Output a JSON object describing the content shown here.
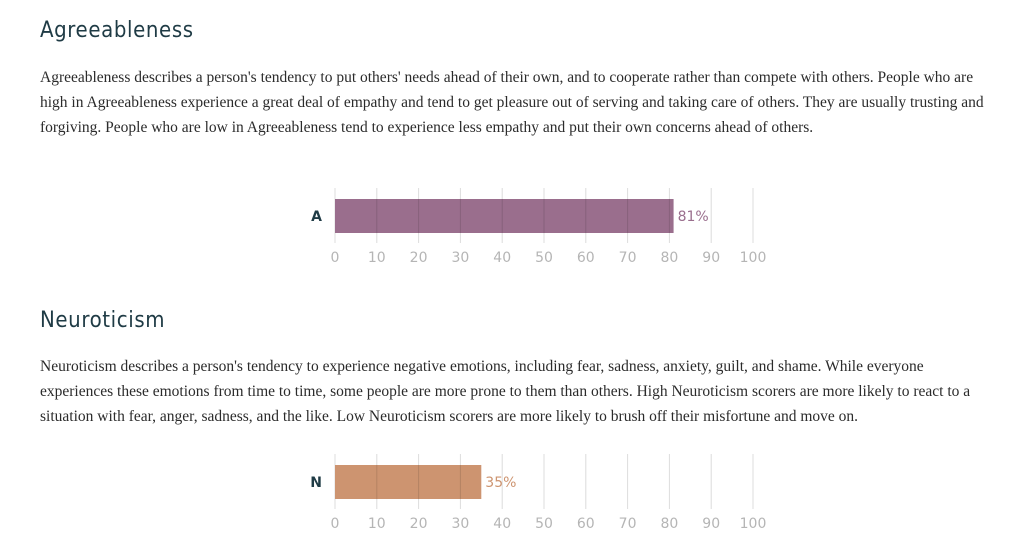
{
  "sections": [
    {
      "title": "Agreeableness",
      "description": "Agreeableness describes a person's tendency to put others' needs ahead of their own, and to cooperate rather than compete with others. People who are high in Agreeableness experience a great deal of empathy and tend to get pleasure out of serving and taking care of others. They are usually trusting and forgiving. People who are low in Agreeableness tend to experience less empathy and put their own concerns ahead of others."
    },
    {
      "title": "Neuroticism",
      "description": "Neuroticism describes a person's tendency to experience negative emotions, including fear, sadness, anxiety, guilt, and shame. While everyone experiences these emotions from time to time, some people are more prone to them than others. High Neuroticism scorers are more likely to react to a situation with fear, anger, sadness, and the like. Low Neuroticism scorers are more likely to brush off their misfortune and move on."
    }
  ],
  "chart_data": [
    {
      "type": "bar",
      "orientation": "horizontal",
      "categories": [
        "A"
      ],
      "values": [
        81
      ],
      "value_labels": [
        "81%"
      ],
      "xlim": [
        0,
        100
      ],
      "xticks": [
        "0",
        "10",
        "20",
        "30",
        "40",
        "50",
        "60",
        "70",
        "80",
        "90",
        "100"
      ],
      "grid": true,
      "color": "#9a6e8d"
    },
    {
      "type": "bar",
      "orientation": "horizontal",
      "categories": [
        "N"
      ],
      "values": [
        35
      ],
      "value_labels": [
        "35%"
      ],
      "xlim": [
        0,
        100
      ],
      "xticks": [
        "0",
        "10",
        "20",
        "30",
        "40",
        "50",
        "60",
        "70",
        "80",
        "90",
        "100"
      ],
      "grid": true,
      "color": "#cd9470"
    }
  ]
}
